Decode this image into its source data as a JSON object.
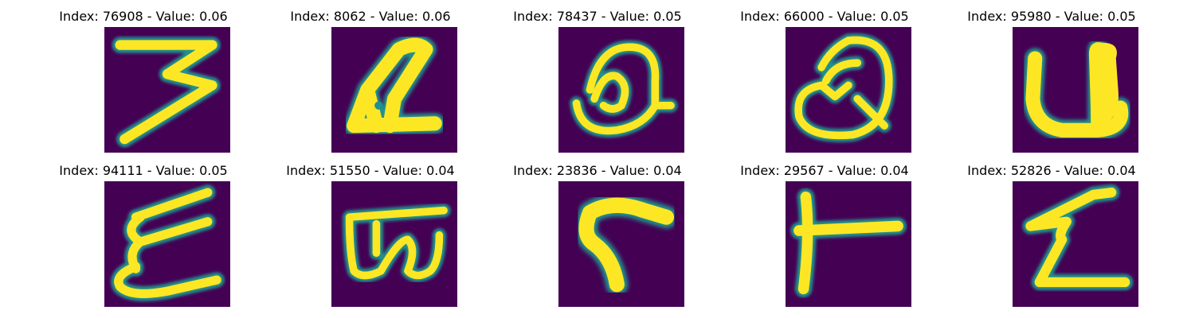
{
  "palette": {
    "background": "#440154",
    "ink": "#fde725",
    "edge": "#21918c"
  },
  "panels": [
    {
      "title": "Index: 76908 - Value: 0.06",
      "glyph": "three-like"
    },
    {
      "title": "Index: 8062 - Value: 0.06",
      "glyph": "slanted-a-like"
    },
    {
      "title": "Index: 78437 - Value: 0.05",
      "glyph": "loop-q-like"
    },
    {
      "title": "Index: 66000 - Value: 0.05",
      "glyph": "loop-q-like-2"
    },
    {
      "title": "Index: 95980 - Value: 0.05",
      "glyph": "u-like"
    },
    {
      "title": "Index: 94111 - Value: 0.05",
      "glyph": "epsilon-like"
    },
    {
      "title": "Index: 51550 - Value: 0.04",
      "glyph": "w-like"
    },
    {
      "title": "Index: 23836 - Value: 0.04",
      "glyph": "l-like"
    },
    {
      "title": "Index: 29567 - Value: 0.04",
      "glyph": "t-like"
    },
    {
      "title": "Index: 52826 - Value: 0.04",
      "glyph": "z-like"
    }
  ]
}
